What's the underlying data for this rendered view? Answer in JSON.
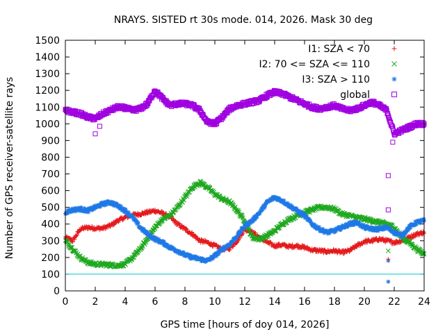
{
  "chart_data": {
    "type": "scatter",
    "title": "NRAYS. SISTED rt 30s mode. 014, 2026. Mask 30 deg",
    "xlabel": "GPS time [hours of doy 014, 2026]",
    "ylabel": "Number of GPS receiver-satellite rays",
    "xlim": [
      0,
      24
    ],
    "ylim": [
      0,
      1500
    ],
    "xticks": [
      0,
      2,
      4,
      6,
      8,
      10,
      12,
      14,
      16,
      18,
      20,
      22,
      24
    ],
    "yticks": [
      0,
      100,
      200,
      300,
      400,
      500,
      600,
      700,
      800,
      900,
      1000,
      1100,
      1200,
      1300,
      1400,
      1500
    ],
    "legend_position": "top-right",
    "reference_line": {
      "y": 100,
      "color": "#00c8d0"
    },
    "series": [
      {
        "name": "I1: SZA < 70",
        "marker": "+",
        "color": "#e41a1c",
        "x": [
          0,
          0.5,
          1,
          1.5,
          2,
          2.5,
          3,
          3.5,
          4,
          4.5,
          5,
          5.5,
          6,
          6.5,
          7,
          7.5,
          8,
          8.5,
          9,
          9.5,
          10,
          10.5,
          11,
          11.5,
          12,
          12.5,
          13,
          13.5,
          14,
          14.5,
          15,
          15.5,
          16,
          16.5,
          17,
          17.5,
          18,
          18.5,
          19,
          19.5,
          20,
          20.5,
          21,
          21.5,
          22,
          22.5,
          23,
          23.5,
          24
        ],
        "values": [
          320,
          300,
          370,
          380,
          375,
          375,
          390,
          420,
          440,
          455,
          460,
          470,
          480,
          465,
          440,
          400,
          370,
          340,
          300,
          290,
          270,
          250,
          255,
          300,
          370,
          350,
          320,
          290,
          270,
          275,
          265,
          270,
          260,
          245,
          240,
          235,
          240,
          230,
          240,
          270,
          295,
          300,
          310,
          300,
          290,
          300,
          320,
          340,
          350
        ]
      },
      {
        "name": "I2: 70 <= SZA <= 110",
        "marker": "x",
        "color": "#1fa81f",
        "x": [
          0,
          0.5,
          1,
          1.5,
          2,
          2.5,
          3,
          3.5,
          4,
          4.5,
          5,
          5.5,
          6,
          6.5,
          7,
          7.5,
          8,
          8.5,
          9,
          9.5,
          10,
          10.5,
          11,
          11.5,
          12,
          12.5,
          13,
          13.5,
          14,
          14.5,
          15,
          15.5,
          16,
          16.5,
          17,
          17.5,
          18,
          18.5,
          19,
          19.5,
          20,
          20.5,
          21,
          21.5,
          22,
          22.5,
          23,
          23.5,
          24
        ],
        "values": [
          300,
          250,
          200,
          170,
          160,
          158,
          155,
          152,
          160,
          200,
          250,
          310,
          380,
          430,
          450,
          500,
          560,
          620,
          650,
          620,
          580,
          550,
          530,
          480,
          420,
          320,
          310,
          330,
          360,
          400,
          430,
          450,
          470,
          485,
          500,
          500,
          490,
          460,
          450,
          440,
          430,
          420,
          410,
          400,
          380,
          320,
          290,
          250,
          220
        ]
      },
      {
        "name": "I3: SZA > 110",
        "marker": "*",
        "color": "#1f78e6",
        "x": [
          0,
          0.5,
          1,
          1.5,
          2,
          2.5,
          3,
          3.5,
          4,
          4.5,
          5,
          5.5,
          6,
          6.5,
          7,
          7.5,
          8,
          8.5,
          9,
          9.5,
          10,
          10.5,
          11,
          11.5,
          12,
          12.5,
          13,
          13.5,
          14,
          14.5,
          15,
          15.5,
          16,
          16.5,
          17,
          17.5,
          18,
          18.5,
          19,
          19.5,
          20,
          20.5,
          21,
          21.5,
          22,
          22.5,
          23,
          23.5,
          24
        ],
        "values": [
          470,
          485,
          490,
          480,
          500,
          520,
          530,
          510,
          480,
          440,
          380,
          340,
          310,
          290,
          260,
          240,
          215,
          200,
          190,
          180,
          210,
          250,
          280,
          330,
          390,
          420,
          470,
          530,
          560,
          540,
          510,
          480,
          450,
          400,
          370,
          350,
          360,
          380,
          400,
          410,
          380,
          370,
          370,
          380,
          350,
          330,
          380,
          410,
          420
        ]
      },
      {
        "name": "global",
        "marker": "square",
        "color": "#a000e0",
        "x": [
          0,
          0.5,
          1,
          1.5,
          2,
          2.5,
          3,
          3.5,
          4,
          4.5,
          5,
          5.5,
          6,
          6.5,
          7,
          7.5,
          8,
          8.5,
          9,
          9.5,
          10,
          10.5,
          11,
          11.5,
          12,
          12.5,
          13,
          13.5,
          14,
          14.5,
          15,
          15.5,
          16,
          16.5,
          17,
          17.5,
          18,
          18.5,
          19,
          19.5,
          20,
          20.5,
          21,
          21.5,
          22,
          22.5,
          23,
          23.5,
          24
        ],
        "values": [
          1080,
          1070,
          1060,
          1040,
          1030,
          1060,
          1080,
          1100,
          1095,
          1080,
          1090,
          1120,
          1200,
          1150,
          1110,
          1120,
          1120,
          1110,
          1080,
          1010,
          1000,
          1040,
          1090,
          1110,
          1120,
          1130,
          1140,
          1170,
          1190,
          1180,
          1160,
          1140,
          1120,
          1100,
          1090,
          1100,
          1110,
          1090,
          1080,
          1090,
          1110,
          1130,
          1110,
          1080,
          940,
          960,
          980,
          1000,
          1000
        ]
      }
    ],
    "outliers": [
      {
        "series": "global",
        "x": 2.0,
        "y": 940
      },
      {
        "series": "global",
        "x": 2.3,
        "y": 985
      },
      {
        "series": "global",
        "x": 21.6,
        "y": 690
      },
      {
        "series": "global",
        "x": 21.6,
        "y": 485
      },
      {
        "series": "global",
        "x": 21.9,
        "y": 890
      },
      {
        "series": "I3: SZA > 110",
        "x": 21.6,
        "y": 55
      },
      {
        "series": "I3: SZA > 110",
        "x": 21.6,
        "y": 180
      },
      {
        "series": "I2: 70 <= SZA <= 110",
        "x": 21.6,
        "y": 240
      },
      {
        "series": "I1: SZA < 70",
        "x": 21.6,
        "y": 190
      }
    ]
  }
}
